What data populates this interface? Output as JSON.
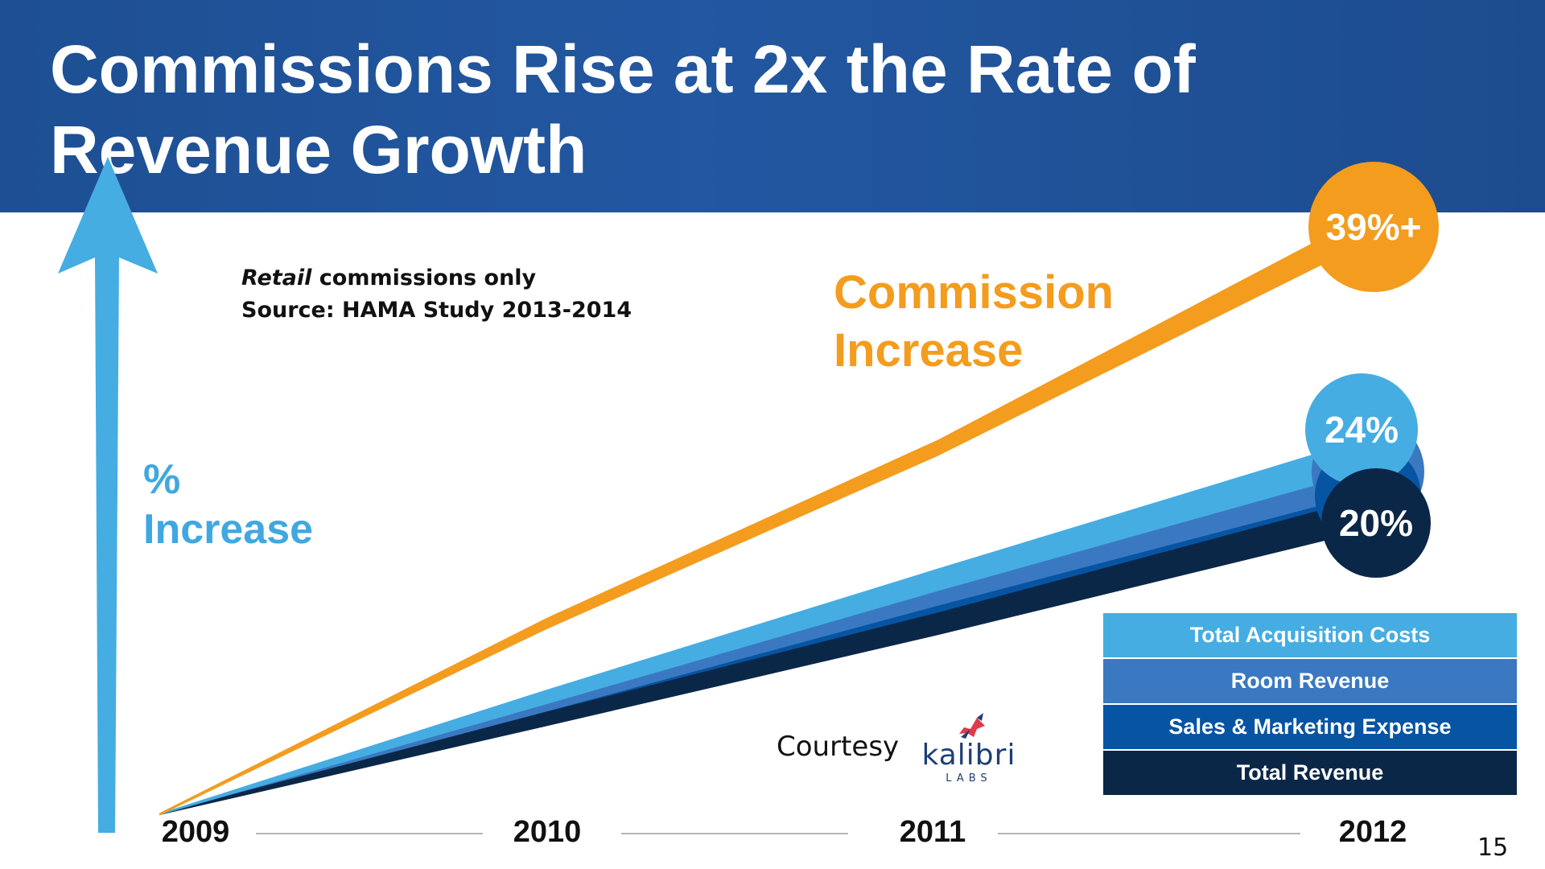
{
  "slide": {
    "title_line1": "Commissions Rise at 2x the Rate of",
    "title_line2": "Revenue Growth",
    "note_italic": "Retail",
    "note_rest": " commissions only",
    "source": "Source: HAMA Study 2013-2014",
    "axis_label_line1": "%",
    "axis_label_line2": "Increase",
    "commission_label_line1": "Commission",
    "commission_label_line2": "Increase",
    "courtesy": "Courtesy",
    "logo_word": "kalibri",
    "logo_sub": "LABS",
    "page_number": "15"
  },
  "colors": {
    "header": "#2257a1",
    "commission": "#f39c1e",
    "total_acquisition_costs": "#45ade2",
    "room_revenue": "#3a79c1",
    "sales_marketing_expense": "#0754a3",
    "total_revenue": "#0b2748",
    "axis_arrow": "#45ade2"
  },
  "chart_data": {
    "type": "line",
    "x": [
      "2009",
      "2010",
      "2011",
      "2012"
    ],
    "series": [
      {
        "name": "Commission Increase",
        "values": [
          0,
          13,
          25,
          39
        ],
        "end_label": "39%+"
      },
      {
        "name": "Total Acquisition Costs",
        "values": [
          0,
          8,
          16,
          24
        ],
        "end_label": "24%"
      },
      {
        "name": "Room Revenue",
        "values": [
          0,
          7.5,
          15,
          22.5
        ]
      },
      {
        "name": "Sales & Marketing Expense",
        "values": [
          0,
          7,
          14,
          21
        ]
      },
      {
        "name": "Total Revenue",
        "values": [
          0,
          6.5,
          13,
          20
        ],
        "end_label": "20%"
      }
    ],
    "ylim": [
      0,
      40
    ],
    "legend": [
      "Total Acquisition Costs",
      "Room Revenue",
      "Sales & Marketing Expense",
      "Total Revenue"
    ],
    "legend_position": "bottom-right",
    "grid": false
  }
}
